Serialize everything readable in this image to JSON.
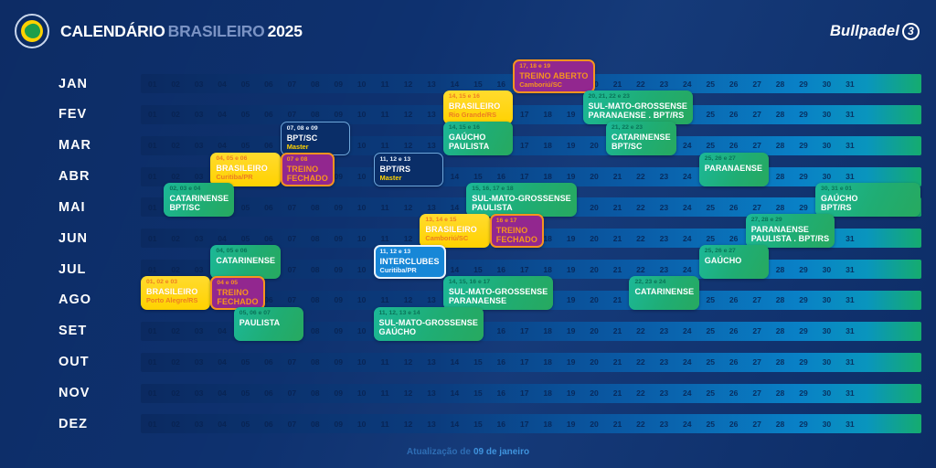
{
  "header": {
    "title_part1": "CALENDÁRIO",
    "title_part2": "BRASILEIRO",
    "title_year": "2025",
    "brand": "Bullpadel",
    "brand_icon": "3"
  },
  "months": [
    "JAN",
    "FEV",
    "MAR",
    "ABR",
    "MAI",
    "JUN",
    "JUL",
    "AGO",
    "SET",
    "OUT",
    "NOV",
    "DEZ"
  ],
  "day_numbers": [
    "01",
    "02",
    "03",
    "04",
    "05",
    "06",
    "07",
    "08",
    "09",
    "10",
    "11",
    "12",
    "13",
    "14",
    "15",
    "16",
    "17",
    "18",
    "19",
    "20",
    "21",
    "22",
    "23",
    "24",
    "25",
    "26",
    "27",
    "28",
    "29",
    "30",
    "31"
  ],
  "events": [
    {
      "month": "JAN",
      "day": 17,
      "span": 3,
      "type": "treino",
      "dates": "17, 18 e 19",
      "lines": [
        "TREINO ABERTO"
      ],
      "sub": "Camboriú/SC"
    },
    {
      "month": "FEV",
      "day": 14,
      "span": 3,
      "type": "yellow",
      "dates": "14, 15 e 16",
      "lines": [
        "BRASILEIRO"
      ],
      "sub": "Rio Grande/RS"
    },
    {
      "month": "FEV",
      "day": 20,
      "span": 4,
      "type": "green",
      "dates": "20, 21, 22 e 23",
      "lines": [
        "SUL-MATO-GROSSENSE",
        "PARANAENSE . BPT/RS"
      ]
    },
    {
      "month": "MAR",
      "day": 7,
      "span": 3,
      "type": "navy",
      "dates": "07, 08 e 09",
      "lines": [
        "BPT/SC"
      ],
      "sub": "Master"
    },
    {
      "month": "MAR",
      "day": 14,
      "span": 3,
      "type": "green",
      "dates": "14, 15 e 16",
      "lines": [
        "GAÚCHO",
        "PAULISTA"
      ]
    },
    {
      "month": "MAR",
      "day": 21,
      "span": 3,
      "type": "green",
      "dates": "21, 22 e 23",
      "lines": [
        "CATARINENSE",
        "BPT/SC"
      ]
    },
    {
      "month": "ABR",
      "day": 4,
      "span": 3,
      "type": "yellow",
      "dates": "04, 05 e 06",
      "lines": [
        "BRASILEIRO"
      ],
      "sub": "Curitiba/PR"
    },
    {
      "month": "ABR",
      "day": 7,
      "span": 2,
      "type": "treino",
      "dates": "07 e 08",
      "lines": [
        "TREINO",
        "FECHADO"
      ]
    },
    {
      "month": "ABR",
      "day": 11,
      "span": 3,
      "type": "navy",
      "dates": "11, 12 e 13",
      "lines": [
        "BPT/RS"
      ],
      "sub": "Master"
    },
    {
      "month": "ABR",
      "day": 25,
      "span": 3,
      "type": "green",
      "dates": "25, 26 e 27",
      "lines": [
        "PARANAENSE"
      ]
    },
    {
      "month": "MAI",
      "day": 2,
      "span": 3,
      "type": "green",
      "dates": "02, 03 e 04",
      "lines": [
        "CATARINENSE",
        "BPT/SC"
      ]
    },
    {
      "month": "MAI",
      "day": 15,
      "span": 4,
      "type": "green",
      "dates": "15, 16, 17 e 18",
      "lines": [
        "SUL-MATO-GROSSENSE",
        "PAULISTA"
      ]
    },
    {
      "month": "MAI",
      "day": 30,
      "span": 4.5,
      "type": "green",
      "dates": "30, 31 e 01",
      "lines": [
        "GAÚCHO",
        "BPT/RS"
      ]
    },
    {
      "month": "JUN",
      "day": 13,
      "span": 3,
      "type": "yellow",
      "dates": "13, 14 e 15",
      "lines": [
        "BRASILEIRO"
      ],
      "sub": "Camboriú/SC"
    },
    {
      "month": "JUN",
      "day": 16,
      "span": 2,
      "type": "treino",
      "dates": "16 e 17",
      "lines": [
        "TREINO",
        "FECHADO"
      ]
    },
    {
      "month": "JUN",
      "day": 27,
      "span": 3,
      "type": "green",
      "dates": "27, 28 e 29",
      "lines": [
        "PARANAENSE",
        "PAULISTA . BPT/RS"
      ]
    },
    {
      "month": "JUL",
      "day": 4,
      "span": 3,
      "type": "green",
      "dates": "04, 05 e 06",
      "lines": [
        "CATARINENSE"
      ]
    },
    {
      "month": "JUL",
      "day": 11,
      "span": 3,
      "type": "lightblue",
      "dates": "11, 12 e 13",
      "lines": [
        "INTERCLUBES"
      ],
      "sub": "Curitiba/PR"
    },
    {
      "month": "JUL",
      "day": 25,
      "span": 3,
      "type": "green",
      "dates": "25, 26 e 27",
      "lines": [
        "GAÚCHO"
      ]
    },
    {
      "month": "AGO",
      "day": 1,
      "span": 3,
      "type": "yellow",
      "dates": "01, 02 e 03",
      "lines": [
        "BRASILEIRO"
      ],
      "sub": "Porto Alegre/RS"
    },
    {
      "month": "AGO",
      "day": 4,
      "span": 2,
      "type": "treino",
      "dates": "04 e 05",
      "lines": [
        "TREINO",
        "FECHADO"
      ]
    },
    {
      "month": "AGO",
      "day": 14,
      "span": 4,
      "type": "green",
      "dates": "14, 15, 16 e 17",
      "lines": [
        "SUL-MATO-GROSSENSE",
        "PARANAENSE"
      ]
    },
    {
      "month": "AGO",
      "day": 22,
      "span": 3,
      "type": "green",
      "dates": "22, 23 e 24",
      "lines": [
        "CATARINENSE"
      ]
    },
    {
      "month": "SET",
      "day": 5,
      "span": 3,
      "type": "green",
      "dates": "05, 06 e 07",
      "lines": [
        "PAULISTA"
      ]
    },
    {
      "month": "SET",
      "day": 11,
      "span": 4,
      "type": "green",
      "dates": "11, 12, 13 e 14",
      "lines": [
        "SUL-MATO-GROSSENSE",
        "GAÚCHO"
      ]
    }
  ],
  "footer": {
    "prefix": "Atualização de",
    "date": "09 de janeiro"
  },
  "colors": {
    "background": "#0E316F",
    "bar_gradient_left": "#0B2A61",
    "bar_gradient_right_blue": "#0980C6",
    "bar_tail_green": "#15AC6F",
    "event_yellow": "#FFD200",
    "event_orange_accent": "#F7941E",
    "event_purple": "#92278F",
    "event_green_a": "#1CB898",
    "event_green_b": "#27A95F",
    "event_navy": "#0A2E68",
    "event_navy_border": "#6FA8DC",
    "event_lightblue": "#1787D7",
    "footer_prefix_blue": "#2E6DB4",
    "footer_date_blue": "#3F93DD"
  }
}
